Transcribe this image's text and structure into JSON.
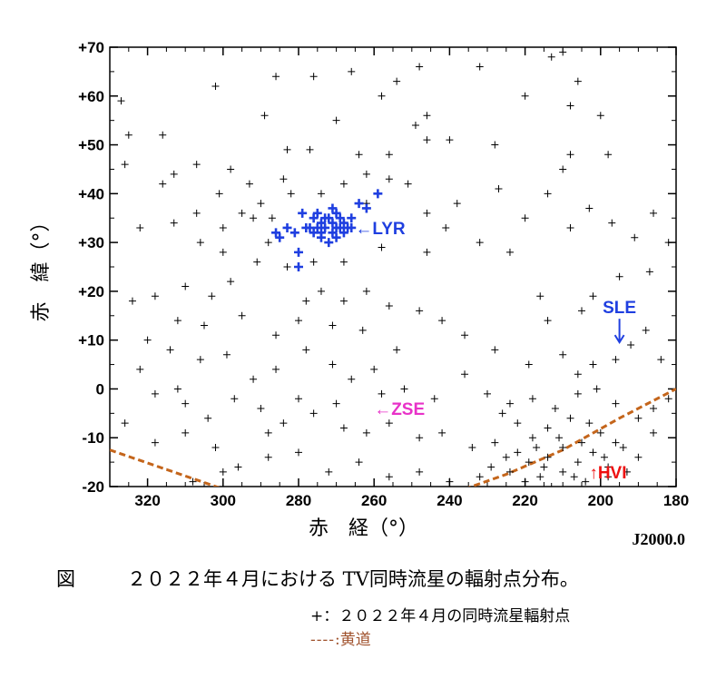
{
  "chart_data": {
    "type": "scatter",
    "title": "",
    "xlabel": "赤　経（°）",
    "ylabel": "赤　緯（°）",
    "epoch": "J2000.0",
    "xlim": [
      330,
      180
    ],
    "ylim": [
      -20,
      70
    ],
    "x_ticks": [
      320,
      300,
      280,
      260,
      240,
      220,
      200,
      180
    ],
    "x_tick_labels": [
      "320",
      "300",
      "280",
      "260",
      "240",
      "220",
      "200",
      "180"
    ],
    "y_ticks": [
      70,
      60,
      50,
      40,
      30,
      20,
      10,
      0,
      -10,
      -20
    ],
    "y_tick_labels": [
      "+70",
      "+60",
      "+50",
      "+40",
      "+30",
      "+20",
      "+10",
      "0",
      "-10",
      "-20"
    ],
    "grid": false,
    "series": [
      {
        "name": "同時流星輻射点",
        "color": "#000000",
        "marker": "+",
        "points": [
          [
            327,
            59
          ],
          [
            325,
            52
          ],
          [
            326,
            46
          ],
          [
            316,
            52
          ],
          [
            313,
            44
          ],
          [
            307,
            46
          ],
          [
            302,
            62
          ],
          [
            289,
            56
          ],
          [
            286,
            64
          ],
          [
            276,
            64
          ],
          [
            266,
            65
          ],
          [
            258,
            60
          ],
          [
            254,
            63
          ],
          [
            248,
            66
          ],
          [
            232,
            66
          ],
          [
            220,
            60
          ],
          [
            213,
            68
          ],
          [
            210,
            69
          ],
          [
            206,
            63
          ],
          [
            208,
            58
          ],
          [
            200,
            56
          ],
          [
            198,
            48
          ],
          [
            208,
            48
          ],
          [
            210,
            45
          ],
          [
            246,
            56
          ],
          [
            249,
            54
          ],
          [
            246,
            51
          ],
          [
            240,
            51
          ],
          [
            228,
            50
          ],
          [
            256,
            48
          ],
          [
            264,
            48
          ],
          [
            270,
            55
          ],
          [
            277,
            49
          ],
          [
            283,
            49
          ],
          [
            262,
            44
          ],
          [
            298,
            45
          ],
          [
            301,
            40
          ],
          [
            307,
            36
          ],
          [
            313,
            34
          ],
          [
            322,
            33
          ],
          [
            316,
            42
          ],
          [
            293,
            42
          ],
          [
            290,
            38
          ],
          [
            295,
            36
          ],
          [
            287,
            35
          ],
          [
            284,
            43
          ],
          [
            256,
            43
          ],
          [
            251,
            42
          ],
          [
            246,
            36
          ],
          [
            241,
            33
          ],
          [
            238,
            38
          ],
          [
            227,
            41
          ],
          [
            220,
            35
          ],
          [
            214,
            40
          ],
          [
            208,
            33
          ],
          [
            203,
            37
          ],
          [
            197,
            34
          ],
          [
            191,
            31
          ],
          [
            186,
            36
          ],
          [
            182,
            30
          ],
          [
            187,
            24
          ],
          [
            195,
            23
          ],
          [
            202,
            19
          ],
          [
            205,
            16
          ],
          [
            216,
            19
          ],
          [
            224,
            28
          ],
          [
            232,
            30
          ],
          [
            246,
            28
          ],
          [
            258,
            29
          ],
          [
            268,
            26
          ],
          [
            276,
            26
          ],
          [
            283,
            25
          ],
          [
            291,
            26
          ],
          [
            298,
            22
          ],
          [
            303,
            19
          ],
          [
            310,
            21
          ],
          [
            318,
            19
          ],
          [
            324,
            18
          ],
          [
            312,
            14
          ],
          [
            305,
            13
          ],
          [
            295,
            15
          ],
          [
            286,
            11
          ],
          [
            280,
            14
          ],
          [
            271,
            13
          ],
          [
            263,
            12
          ],
          [
            256,
            17
          ],
          [
            248,
            16
          ],
          [
            242,
            14
          ],
          [
            236,
            11
          ],
          [
            228,
            8
          ],
          [
            219,
            5
          ],
          [
            214,
            14
          ],
          [
            210,
            7
          ],
          [
            206,
            3
          ],
          [
            202,
            5
          ],
          [
            196,
            6
          ],
          [
            192,
            9
          ],
          [
            188,
            12
          ],
          [
            184,
            6
          ],
          [
            182,
            -2
          ],
          [
            314,
            8
          ],
          [
            306,
            6
          ],
          [
            299,
            7
          ],
          [
            292,
            2
          ],
          [
            286,
            4
          ],
          [
            278,
            8
          ],
          [
            271,
            5
          ],
          [
            266,
            2
          ],
          [
            260,
            4
          ],
          [
            252,
            0
          ],
          [
            244,
            -2
          ],
          [
            236,
            3
          ],
          [
            230,
            -1
          ],
          [
            224,
            -3
          ],
          [
            218,
            -2
          ],
          [
            212,
            -4
          ],
          [
            206,
            -1
          ],
          [
            201,
            0
          ],
          [
            196,
            -3
          ],
          [
            190,
            -6
          ],
          [
            186,
            -4
          ],
          [
            322,
            4
          ],
          [
            318,
            -1
          ],
          [
            310,
            -3
          ],
          [
            304,
            -6
          ],
          [
            297,
            -2
          ],
          [
            290,
            -4
          ],
          [
            284,
            -7
          ],
          [
            276,
            -5
          ],
          [
            268,
            -8
          ],
          [
            262,
            -9
          ],
          [
            256,
            -7
          ],
          [
            248,
            -10
          ],
          [
            242,
            -9
          ],
          [
            234,
            -12
          ],
          [
            228,
            -11
          ],
          [
            222,
            -13
          ],
          [
            218,
            -10
          ],
          [
            214,
            -14
          ],
          [
            210,
            -12
          ],
          [
            206,
            -15
          ],
          [
            202,
            -13
          ],
          [
            198,
            -16
          ],
          [
            194,
            -12
          ],
          [
            190,
            -14
          ],
          [
            186,
            -9
          ],
          [
            326,
            -7
          ],
          [
            318,
            -11
          ],
          [
            310,
            -9
          ],
          [
            302,
            -12
          ],
          [
            296,
            -16
          ],
          [
            288,
            -14
          ],
          [
            280,
            -13
          ],
          [
            272,
            -17
          ],
          [
            264,
            -15
          ],
          [
            256,
            -18
          ],
          [
            248,
            -17
          ],
          [
            240,
            -19
          ],
          [
            232,
            -18
          ],
          [
            224,
            -17
          ],
          [
            216,
            -18
          ],
          [
            210,
            -17
          ],
          [
            204,
            -19
          ],
          [
            198,
            -18
          ],
          [
            193,
            -17
          ],
          [
            222,
            -7
          ],
          [
            226,
            -5
          ],
          [
            214,
            -8
          ],
          [
            208,
            -6
          ],
          [
            200,
            -9
          ],
          [
            196,
            -11
          ],
          [
            203,
            -7
          ],
          [
            211,
            -10
          ],
          [
            219,
            -15
          ],
          [
            225,
            -14
          ],
          [
            229,
            -16
          ],
          [
            217,
            -12
          ],
          [
            205,
            -11
          ],
          [
            199,
            -14
          ],
          [
            215,
            -16
          ],
          [
            220,
            -19
          ],
          [
            207,
            -18
          ],
          [
            213,
            -20
          ],
          [
            274,
            20
          ],
          [
            268,
            18
          ],
          [
            262,
            20
          ],
          [
            254,
            8
          ],
          [
            258,
            -1
          ],
          [
            270,
            -3
          ],
          [
            280,
            -2
          ],
          [
            288,
            -9
          ],
          [
            300,
            -17
          ],
          [
            308,
            -19
          ],
          [
            312,
            0
          ],
          [
            320,
            10
          ],
          [
            300,
            28
          ],
          [
            288,
            30
          ],
          [
            278,
            18
          ],
          [
            266,
            33
          ],
          [
            262,
            38
          ],
          [
            268,
            42
          ],
          [
            274,
            40
          ],
          [
            282,
            40
          ],
          [
            292,
            35
          ],
          [
            300,
            33
          ],
          [
            306,
            30
          ]
        ]
      },
      {
        "name": "LYR",
        "color": "#1f3fe0",
        "marker": "+",
        "points": [
          [
            279,
            36
          ],
          [
            276,
            35
          ],
          [
            274,
            34
          ],
          [
            272,
            35
          ],
          [
            270,
            36
          ],
          [
            268,
            34
          ],
          [
            266,
            35
          ],
          [
            278,
            33
          ],
          [
            276,
            32
          ],
          [
            274,
            31
          ],
          [
            273,
            33
          ],
          [
            271,
            32
          ],
          [
            269,
            33
          ],
          [
            272,
            30
          ],
          [
            270,
            31
          ],
          [
            268,
            32
          ],
          [
            275,
            36
          ],
          [
            273,
            35
          ],
          [
            271,
            34
          ],
          [
            267,
            33
          ],
          [
            277,
            33
          ],
          [
            274,
            32
          ],
          [
            269,
            35
          ],
          [
            271,
            37
          ],
          [
            266,
            33
          ],
          [
            283,
            33
          ],
          [
            285,
            31
          ],
          [
            281,
            32
          ],
          [
            280,
            28
          ],
          [
            280,
            25
          ],
          [
            262,
            37
          ],
          [
            259,
            40
          ],
          [
            264,
            38
          ],
          [
            286,
            32
          ],
          [
            270,
            33
          ],
          [
            275,
            33
          ]
        ]
      }
    ],
    "ecliptic": {
      "name": "黄道",
      "color": "#c4651b",
      "segments": [
        [
          [
            330,
            -12.5
          ],
          [
            315,
            -16.5
          ],
          [
            300,
            -20.5
          ]
        ],
        [
          [
            236,
            -20.5
          ],
          [
            225,
            -17.5
          ],
          [
            210,
            -12.5
          ],
          [
            195,
            -6
          ],
          [
            180,
            0
          ]
        ]
      ]
    },
    "annotations": [
      {
        "id": "lyr",
        "text": "←LYR",
        "color": "#1f3fe0",
        "x": 265,
        "y": 33
      },
      {
        "id": "zse",
        "text": "←ZSE",
        "color": "#e832c8",
        "x": 260,
        "y": -4
      },
      {
        "id": "sle",
        "text": "SLE",
        "color": "#1f3fe0",
        "x": 195,
        "y": 14
      },
      {
        "id": "hvi",
        "text": "↑HVI",
        "color": "#ee1111",
        "x": 203,
        "y": -17
      }
    ]
  },
  "caption": {
    "figure_label": "図",
    "text": "２０２２年４月における TV同時流星の輻射点分布。"
  },
  "legend": {
    "marker_line": "+：２０２２年４月の同時流星輻射点",
    "ecliptic_symbol": "----",
    "ecliptic_label": ":黄道"
  }
}
